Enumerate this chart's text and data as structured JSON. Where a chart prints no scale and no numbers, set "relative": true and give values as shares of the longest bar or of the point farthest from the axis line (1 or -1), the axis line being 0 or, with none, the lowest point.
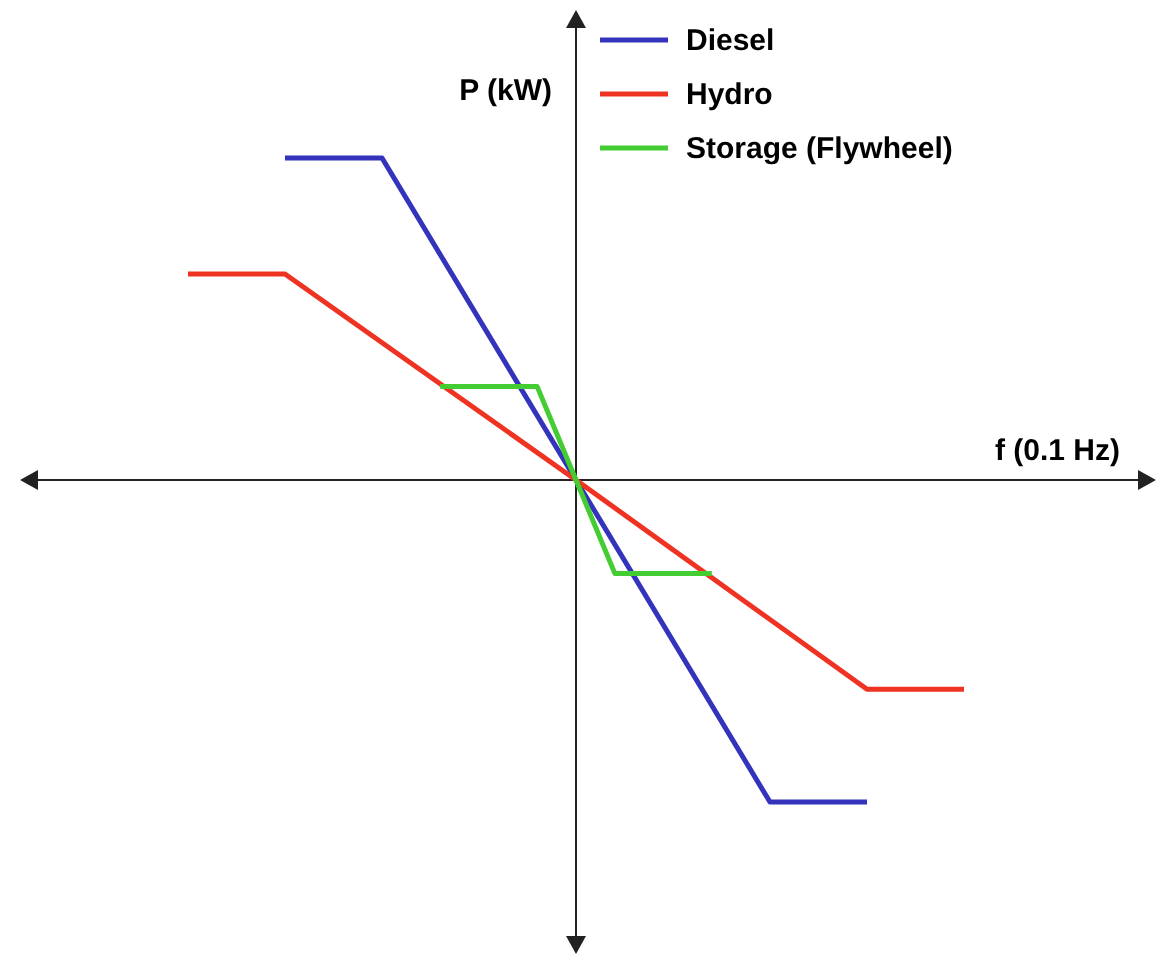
{
  "chart_data": {
    "type": "line",
    "relative": true,
    "xlabel": "f (0.1 Hz)",
    "ylabel": "P (kW)",
    "legend": "top right",
    "marker": "none",
    "line_style": "solid",
    "categories": [
      null,
      null,
      null,
      null,
      null,
      null,
      null,
      null,
      null,
      null,
      null,
      null,
      null,
      null,
      null,
      null,
      null,
      null,
      null,
      null,
      null,
      null,
      null,
      null,
      null,
      null,
      null,
      null,
      null,
      null,
      null,
      null,
      null,
      null,
      null,
      null,
      null,
      null,
      null,
      null,
      null
    ],
    "series": [
      {
        "name": "Diesel",
        "color": "#3333bb",
        "values": [
          null,
          null,
          null,
          null,
          null,
          1,
          null,
          null,
          null,
          null,
          1,
          null,
          null,
          null,
          null,
          null,
          null,
          null,
          null,
          null,
          0,
          null,
          null,
          null,
          null,
          null,
          null,
          null,
          null,
          null,
          -1,
          null,
          null,
          null,
          null,
          -1,
          null,
          null,
          null,
          null,
          null
        ]
      },
      {
        "name": "Hydro",
        "color": "#ee3322",
        "values": [
          0.64,
          null,
          null,
          null,
          null,
          0.64,
          null,
          null,
          null,
          null,
          null,
          null,
          null,
          null,
          null,
          null,
          null,
          null,
          null,
          null,
          0,
          null,
          null,
          null,
          null,
          null,
          null,
          null,
          null,
          null,
          null,
          null,
          null,
          null,
          null,
          -0.65,
          null,
          null,
          null,
          null,
          -0.65
        ]
      },
      {
        "name": "Storage (Flywheel)",
        "color": "#44cc33",
        "values": [
          null,
          null,
          null,
          null,
          null,
          null,
          null,
          null,
          null,
          null,
          null,
          null,
          null,
          0.29,
          null,
          null,
          null,
          null,
          0.29,
          null,
          0,
          null,
          -0.29,
          null,
          null,
          null,
          null,
          -0.29,
          null,
          null,
          null,
          null,
          null,
          null,
          null,
          null,
          null,
          null,
          null,
          null,
          null
        ]
      }
    ]
  }
}
